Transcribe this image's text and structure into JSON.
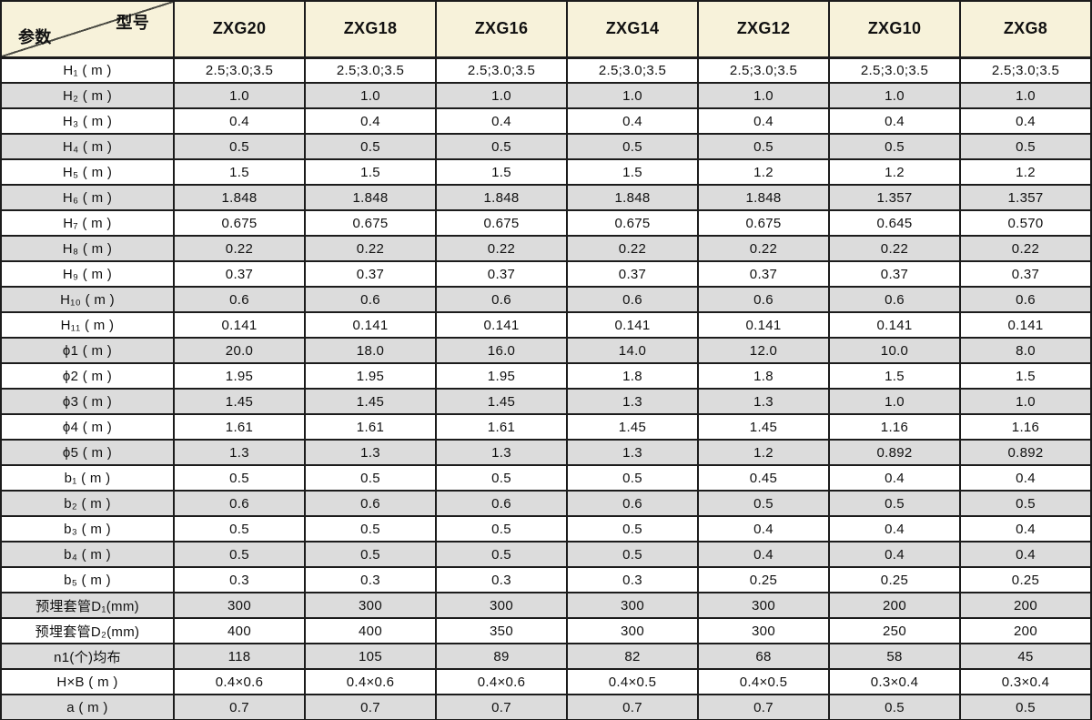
{
  "table": {
    "corner": {
      "top_right": "型号",
      "bottom_left": "参数"
    },
    "columns": [
      "ZXG20",
      "ZXG18",
      "ZXG16",
      "ZXG14",
      "ZXG12",
      "ZXG10",
      "ZXG8"
    ],
    "rows": [
      {
        "label": "H₁ ( m )",
        "values": [
          "2.5;3.0;3.5",
          "2.5;3.0;3.5",
          "2.5;3.0;3.5",
          "2.5;3.0;3.5",
          "2.5;3.0;3.5",
          "2.5;3.0;3.5",
          "2.5;3.0;3.5"
        ]
      },
      {
        "label": "H₂ ( m )",
        "values": [
          "1.0",
          "1.0",
          "1.0",
          "1.0",
          "1.0",
          "1.0",
          "1.0"
        ]
      },
      {
        "label": "H₃ ( m )",
        "values": [
          "0.4",
          "0.4",
          "0.4",
          "0.4",
          "0.4",
          "0.4",
          "0.4"
        ]
      },
      {
        "label": "H₄ ( m )",
        "values": [
          "0.5",
          "0.5",
          "0.5",
          "0.5",
          "0.5",
          "0.5",
          "0.5"
        ]
      },
      {
        "label": "H₅ ( m )",
        "values": [
          "1.5",
          "1.5",
          "1.5",
          "1.5",
          "1.2",
          "1.2",
          "1.2"
        ]
      },
      {
        "label": "H₆ ( m )",
        "values": [
          "1.848",
          "1.848",
          "1.848",
          "1.848",
          "1.848",
          "1.357",
          "1.357"
        ]
      },
      {
        "label": "H₇ ( m )",
        "values": [
          "0.675",
          "0.675",
          "0.675",
          "0.675",
          "0.675",
          "0.645",
          "0.570"
        ]
      },
      {
        "label": "H₈ ( m )",
        "values": [
          "0.22",
          "0.22",
          "0.22",
          "0.22",
          "0.22",
          "0.22",
          "0.22"
        ]
      },
      {
        "label": "H₉ ( m )",
        "values": [
          "0.37",
          "0.37",
          "0.37",
          "0.37",
          "0.37",
          "0.37",
          "0.37"
        ]
      },
      {
        "label": "H₁₀ ( m )",
        "values": [
          "0.6",
          "0.6",
          "0.6",
          "0.6",
          "0.6",
          "0.6",
          "0.6"
        ]
      },
      {
        "label": "H₁₁ ( m )",
        "values": [
          "0.141",
          "0.141",
          "0.141",
          "0.141",
          "0.141",
          "0.141",
          "0.141"
        ]
      },
      {
        "label": "ϕ1 ( m )",
        "values": [
          "20.0",
          "18.0",
          "16.0",
          "14.0",
          "12.0",
          "10.0",
          "8.0"
        ]
      },
      {
        "label": "ϕ2 ( m )",
        "values": [
          "1.95",
          "1.95",
          "1.95",
          "1.8",
          "1.8",
          "1.5",
          "1.5"
        ]
      },
      {
        "label": "ϕ3 ( m )",
        "values": [
          "1.45",
          "1.45",
          "1.45",
          "1.3",
          "1.3",
          "1.0",
          "1.0"
        ]
      },
      {
        "label": "ϕ4 ( m )",
        "values": [
          "1.61",
          "1.61",
          "1.61",
          "1.45",
          "1.45",
          "1.16",
          "1.16"
        ]
      },
      {
        "label": "ϕ5 ( m )",
        "values": [
          "1.3",
          "1.3",
          "1.3",
          "1.3",
          "1.2",
          "0.892",
          "0.892"
        ]
      },
      {
        "label": "b₁ ( m )",
        "values": [
          "0.5",
          "0.5",
          "0.5",
          "0.5",
          "0.45",
          "0.4",
          "0.4"
        ]
      },
      {
        "label": "b₂ ( m )",
        "values": [
          "0.6",
          "0.6",
          "0.6",
          "0.6",
          "0.5",
          "0.5",
          "0.5"
        ]
      },
      {
        "label": "b₃ ( m )",
        "values": [
          "0.5",
          "0.5",
          "0.5",
          "0.5",
          "0.4",
          "0.4",
          "0.4"
        ]
      },
      {
        "label": "b₄ ( m )",
        "values": [
          "0.5",
          "0.5",
          "0.5",
          "0.5",
          "0.4",
          "0.4",
          "0.4"
        ]
      },
      {
        "label": "b₅ ( m )",
        "values": [
          "0.3",
          "0.3",
          "0.3",
          "0.3",
          "0.25",
          "0.25",
          "0.25"
        ]
      },
      {
        "label": "预埋套管D₁(mm)",
        "values": [
          "300",
          "300",
          "300",
          "300",
          "300",
          "200",
          "200"
        ]
      },
      {
        "label": "预埋套管D₂(mm)",
        "values": [
          "400",
          "400",
          "350",
          "300",
          "300",
          "250",
          "200"
        ]
      },
      {
        "label": "n1(个)均布",
        "values": [
          "118",
          "105",
          "89",
          "82",
          "68",
          "58",
          "45"
        ]
      },
      {
        "label": "H×B ( m )",
        "values": [
          "0.4×0.6",
          "0.4×0.6",
          "0.4×0.6",
          "0.4×0.5",
          "0.4×0.5",
          "0.3×0.4",
          "0.3×0.4"
        ]
      },
      {
        "label": "a ( m )",
        "values": [
          "0.7",
          "0.7",
          "0.7",
          "0.7",
          "0.7",
          "0.5",
          "0.5"
        ]
      }
    ]
  },
  "colors": {
    "header_bg": "#f7f2da",
    "row_bg": "#ffffff",
    "row_alt_bg": "#dcdcdc",
    "border": "#1c1c1c",
    "text": "#111111"
  }
}
